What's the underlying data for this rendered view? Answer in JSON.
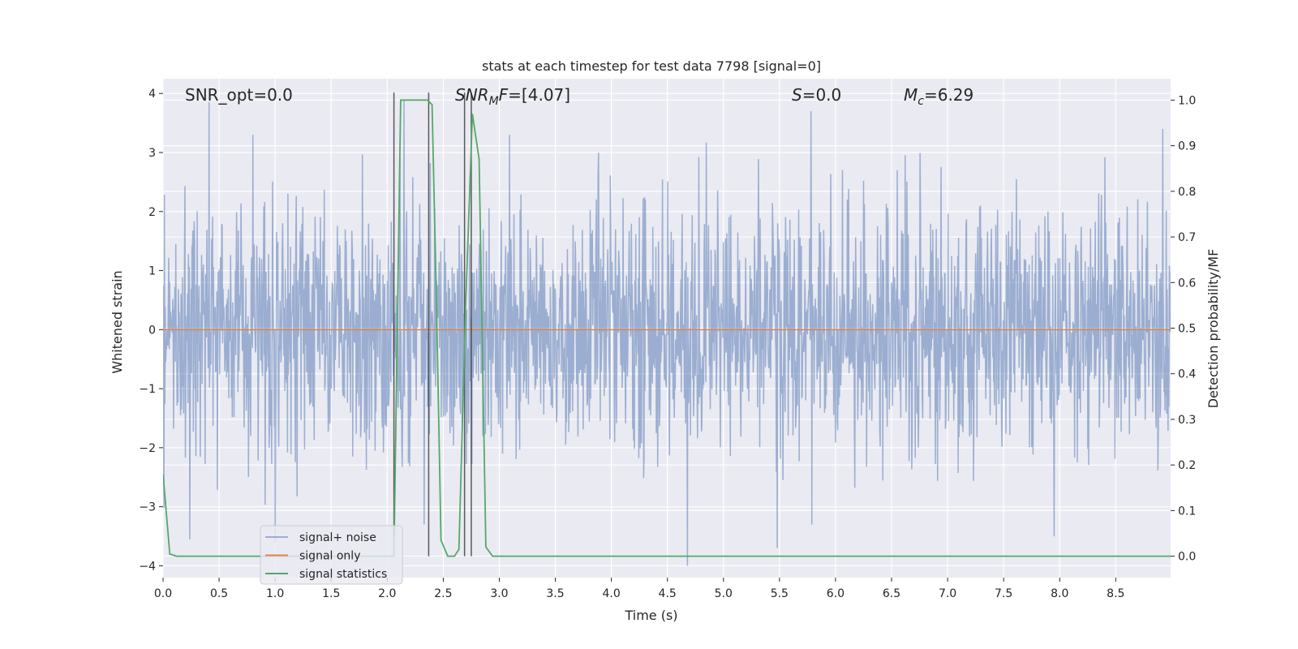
{
  "chart_data": {
    "type": "line",
    "title": "stats at each timestep for test data 7798 [signal=0]",
    "xlabel": "Time (s)",
    "ylabel_left": "Whitened strain",
    "ylabel_right": "Detection probability/MF",
    "xlim": [
      0.0,
      8.99
    ],
    "ylim_left": [
      -4.2,
      4.25
    ],
    "ylim_right": [
      -0.047,
      1.047
    ],
    "x_ticks": [
      "0.0",
      "0.5",
      "1.0",
      "1.5",
      "2.0",
      "2.5",
      "3.0",
      "3.5",
      "4.0",
      "4.5",
      "5.0",
      "5.5",
      "6.0",
      "6.5",
      "7.0",
      "7.5",
      "8.0",
      "8.5"
    ],
    "y_ticks_left": [
      "4",
      "3",
      "2",
      "1",
      "0",
      "−1",
      "−2",
      "−3",
      "−4"
    ],
    "y_ticks_right": [
      "1.0",
      "0.9",
      "0.8",
      "0.7",
      "0.6",
      "0.5",
      "0.4",
      "0.3",
      "0.2",
      "0.1",
      "0.0"
    ],
    "grid": true,
    "legend_position": "lower-left",
    "annotations": {
      "snr_opt": "SNR_opt=0.0",
      "snr_mf_prefix": "SNR",
      "snr_mf_sub": "M",
      "snr_mf_suffix": "F=[4.07]",
      "s_prefix": "S",
      "s_suffix": "=0.0",
      "mc_prefix": "M",
      "mc_sub": "c",
      "mc_suffix": "=6.29"
    },
    "series": [
      {
        "name": "signal+ noise",
        "color": "#4c72b0",
        "alpha": 0.5,
        "description": "whitened noise, roughly Gaussian, amplitude mostly within ±2.5, peaks near ±3.9",
        "notable_peaks": [
          [
            0.41,
            3.85
          ],
          [
            2.15,
            3.9
          ],
          [
            5.78,
            3.7
          ],
          [
            8.92,
            3.4
          ],
          [
            4.68,
            -4.0
          ],
          [
            1.0,
            -3.6
          ],
          [
            0.24,
            -3.55
          ],
          [
            5.48,
            -3.7
          ],
          [
            7.95,
            -3.5
          ]
        ]
      },
      {
        "name": "signal only",
        "color": "#dd8452",
        "x": [
          0.0,
          8.99
        ],
        "y": [
          0.0,
          0.0
        ]
      },
      {
        "name": "signal statistics",
        "color": "#55a868",
        "axis": "right",
        "x": [
          0.0,
          0.06,
          0.12,
          0.5,
          1.0,
          1.5,
          1.9,
          2.06,
          2.12,
          2.18,
          2.24,
          2.3,
          2.36,
          2.4,
          2.44,
          2.48,
          2.54,
          2.6,
          2.64,
          2.7,
          2.76,
          2.82,
          2.88,
          2.94,
          3.0,
          4.0,
          5.0,
          6.0,
          7.0,
          8.0,
          8.99
        ],
        "y": [
          0.18,
          0.005,
          0.0,
          0.0,
          0.0,
          0.0,
          0.0,
          0.0,
          1.0,
          1.0,
          1.0,
          1.0,
          1.0,
          0.99,
          0.55,
          0.035,
          0.0,
          0.0,
          0.015,
          0.55,
          0.97,
          0.87,
          0.02,
          0.0,
          0.0,
          0.0,
          0.0,
          0.0,
          0.0,
          0.0,
          0.0
        ]
      }
    ],
    "vertical_markers": [
      2.06,
      2.37,
      2.69,
      2.75
    ]
  }
}
